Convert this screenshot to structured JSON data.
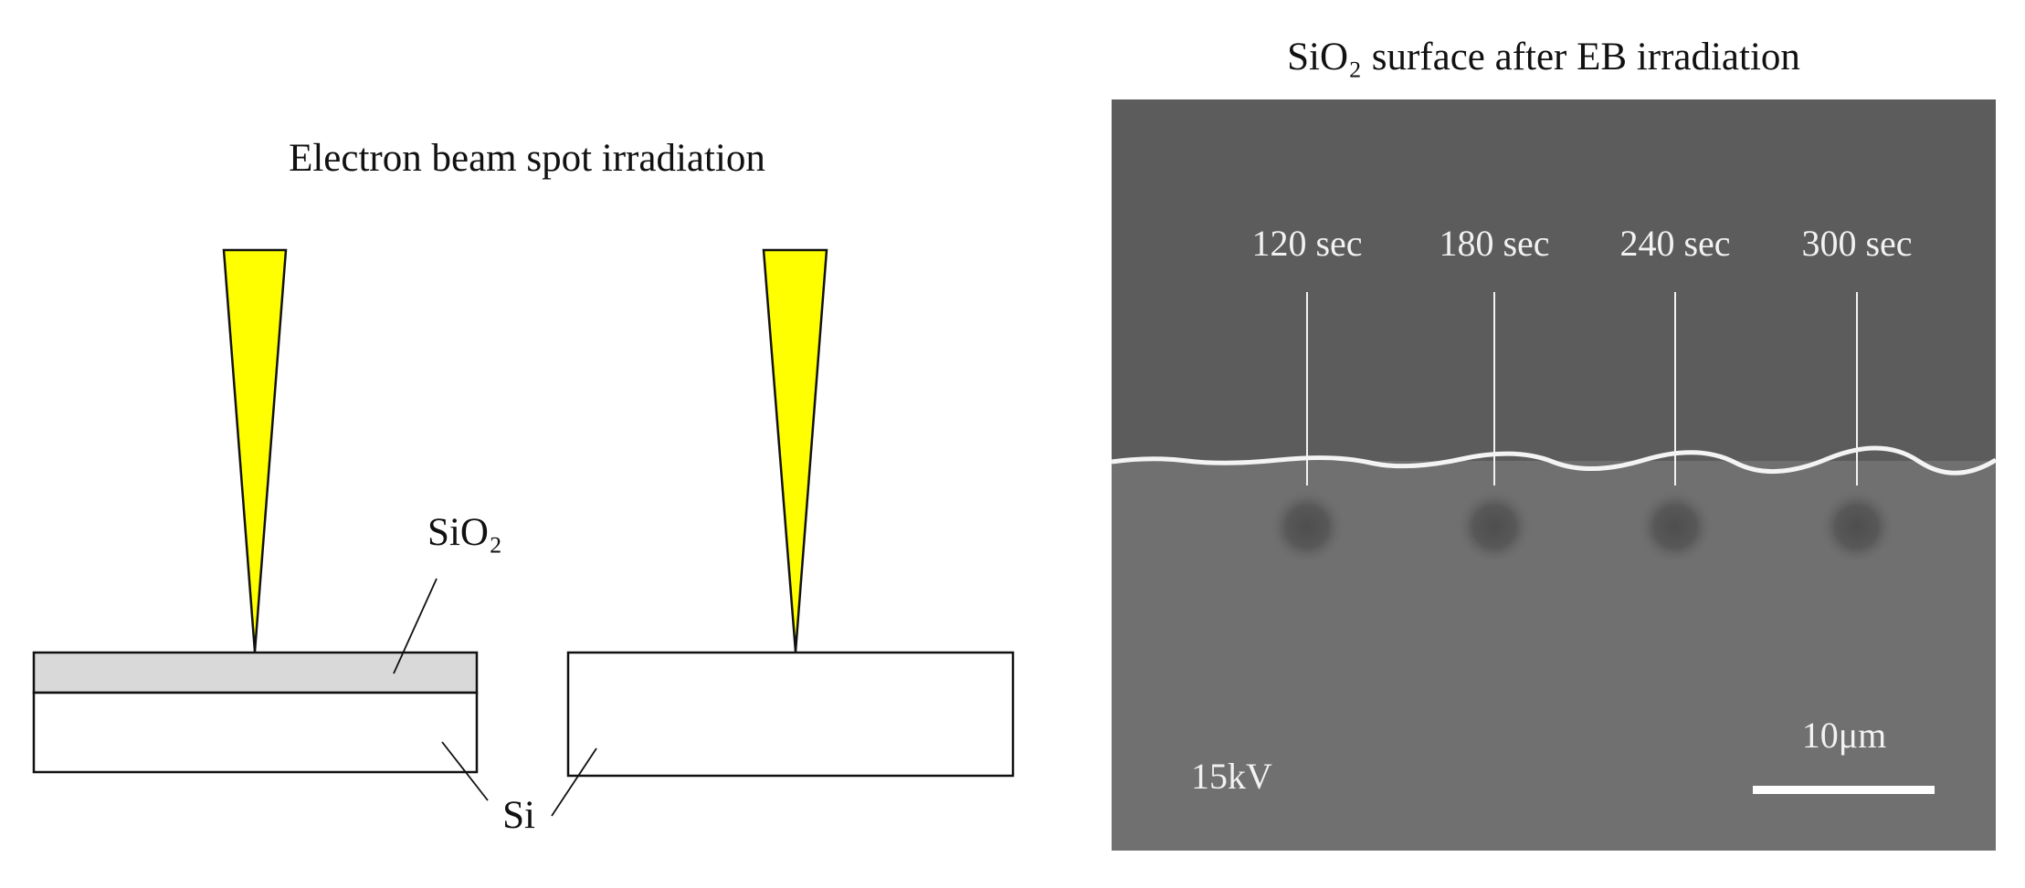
{
  "left_panel": {
    "title": "Electron beam spot irradiation",
    "oxide_label": "SiO₂",
    "substrate_label": "Si"
  },
  "right_panel": {
    "title": "SiO₂ surface after EB irradiation",
    "spot_labels": [
      "120 sec",
      "180 sec",
      "240 sec",
      "300 sec"
    ],
    "voltage": "15kV",
    "scale_bar": "10μm"
  }
}
